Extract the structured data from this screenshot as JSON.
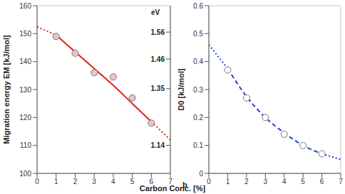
{
  "x_label": "Carbon Conc. [%]",
  "chart_data": [
    {
      "type": "scatter",
      "y_label": "Migration energy EM [kJ/mol]",
      "y2_label": "eV",
      "xlim": [
        0,
        7
      ],
      "xticks": [
        0,
        1,
        2,
        3,
        4,
        5,
        6,
        7
      ],
      "ylim": [
        100,
        160
      ],
      "yticks": [
        100,
        110,
        120,
        130,
        140,
        150,
        160
      ],
      "y2lim": [
        1.036,
        1.658
      ],
      "y2ticks": [
        1.14,
        1.35,
        1.46,
        1.56
      ],
      "grid": true,
      "series": [
        {
          "type": "line",
          "color": "#e0201b",
          "line_style": "dotted",
          "x": [
            0,
            1,
            3.5,
            6,
            7
          ],
          "values": [
            152.5,
            149.5,
            null,
            118.5,
            112
          ]
        },
        {
          "type": "line",
          "color": "#e0201b",
          "line_style": "solid",
          "x": [
            1,
            2,
            3,
            4,
            5,
            6
          ],
          "values": [
            149.5,
            143.5,
            137.5,
            131.5,
            125,
            118.5
          ]
        },
        {
          "type": "scatter",
          "color": "#e8c4cc",
          "marker": "circle",
          "x": [
            1,
            2,
            3,
            4,
            5,
            6
          ],
          "values": [
            149,
            143,
            136,
            134.5,
            127,
            118
          ]
        }
      ]
    },
    {
      "type": "scatter",
      "y_label": "D0 [kJ/mol]",
      "annotations": [
        "b"
      ],
      "xlim": [
        0,
        7
      ],
      "xticks": [
        0,
        1,
        2,
        3,
        4,
        5,
        6,
        7
      ],
      "ylim": [
        0,
        0.6
      ],
      "yticks": [
        0,
        0.1,
        0.2,
        0.3,
        0.4,
        0.5,
        0.6
      ],
      "grid": true,
      "series": [
        {
          "type": "line",
          "color": "#1f3fd0",
          "line_style": "dotted",
          "x": [
            0,
            1,
            3.5,
            6,
            7
          ],
          "values": [
            0.46,
            0.375,
            null,
            0.07,
            0.05
          ]
        },
        {
          "type": "line",
          "color": "#1f3fd0",
          "line_style": "dashed",
          "x": [
            1,
            2,
            3,
            4,
            5,
            6
          ],
          "values": [
            0.375,
            0.275,
            0.2,
            0.145,
            0.1,
            0.07
          ]
        },
        {
          "type": "scatter",
          "color": "#ffffff",
          "marker": "circle",
          "x": [
            1,
            2,
            3,
            4,
            5,
            6
          ],
          "values": [
            0.37,
            0.27,
            0.2,
            0.14,
            0.1,
            0.07
          ]
        }
      ]
    }
  ]
}
